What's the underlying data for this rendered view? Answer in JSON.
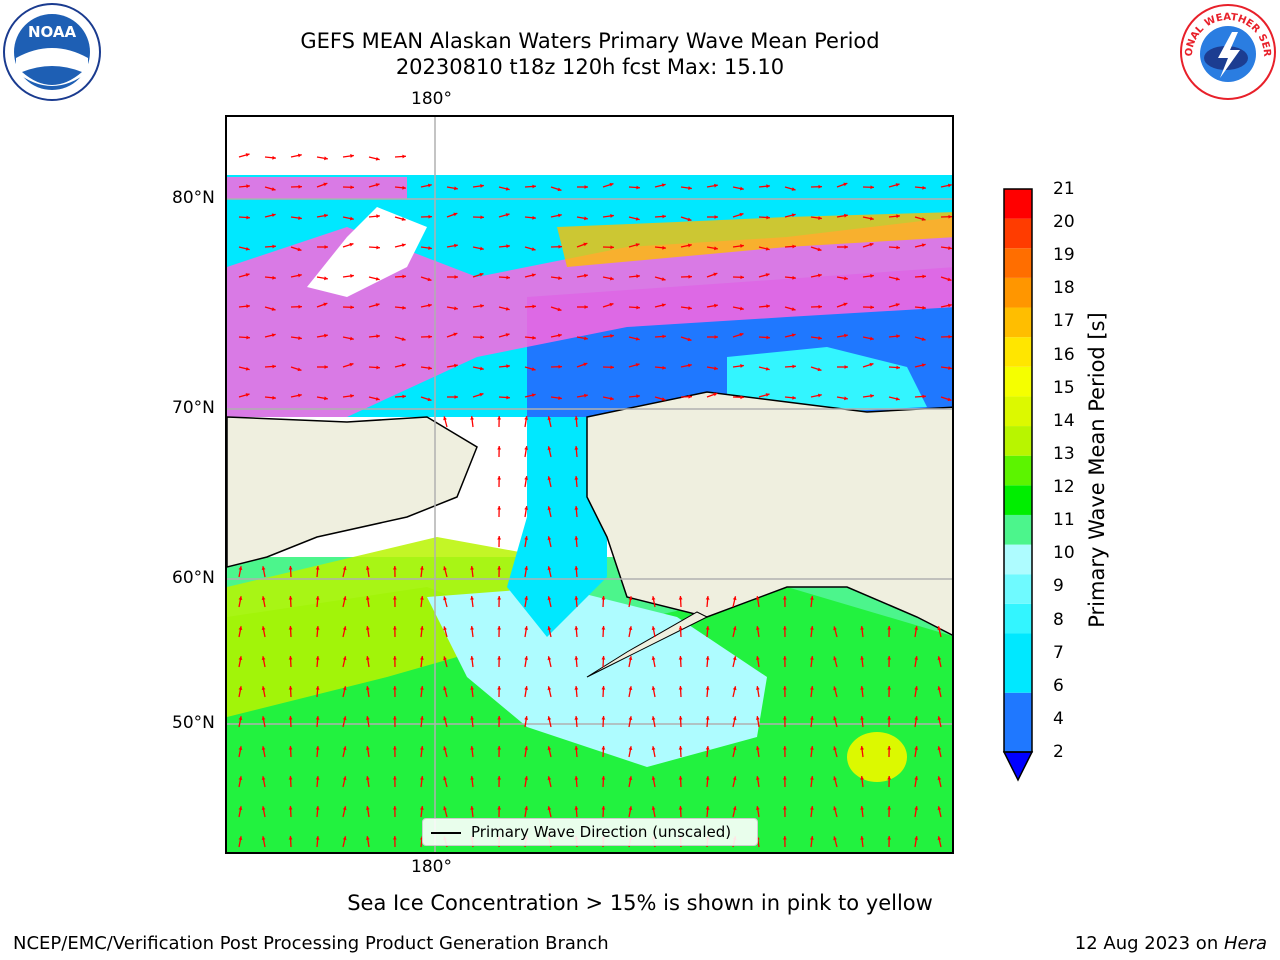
{
  "title": {
    "line1": "GEFS MEAN Alaskan Waters Primary Wave Mean Period",
    "line2": "20230810 t18z 120h fcst   Max: 15.10"
  },
  "logos": {
    "noaa_text": "NOAA",
    "nws_text": "NATIONAL WEATHER SERVICE"
  },
  "map": {
    "lon_label_top": "180°",
    "lon_label_bottom": "180°",
    "lat_labels": [
      "80°N",
      "70°N",
      "60°N",
      "50°N"
    ],
    "legend_label": "Primary Wave Direction (unscaled)",
    "colors": {
      "land": "#efefdf",
      "grid": "#b0b0b0",
      "arrow": "#ff0000"
    }
  },
  "colorbar": {
    "title": "Primary Wave Mean Period [s]",
    "tick_labels": [
      "2",
      "4",
      "6",
      "7",
      "8",
      "9",
      "10",
      "11",
      "12",
      "13",
      "14",
      "15",
      "16",
      "17",
      "18",
      "19",
      "20",
      "21"
    ],
    "bins": [
      {
        "from": 2,
        "to": 4,
        "color": "#1f78ff"
      },
      {
        "from": 4,
        "to": 6,
        "color": "#00e8ff"
      },
      {
        "from": 6,
        "to": 7,
        "color": "#33f5ff"
      },
      {
        "from": 7,
        "to": 8,
        "color": "#6ffaff"
      },
      {
        "from": 8,
        "to": 9,
        "color": "#aefcff"
      },
      {
        "from": 9,
        "to": 10,
        "color": "#4cf58c"
      },
      {
        "from": 10,
        "to": 11,
        "color": "#00ee00"
      },
      {
        "from": 11,
        "to": 12,
        "color": "#5cf400"
      },
      {
        "from": 12,
        "to": 13,
        "color": "#b8f500"
      },
      {
        "from": 13,
        "to": 14,
        "color": "#dcf900"
      },
      {
        "from": 14,
        "to": 15,
        "color": "#f5ff00"
      },
      {
        "from": 15,
        "to": 16,
        "color": "#ffe600"
      },
      {
        "from": 16,
        "to": 17,
        "color": "#ffbe00"
      },
      {
        "from": 17,
        "to": 18,
        "color": "#ff9600"
      },
      {
        "from": 18,
        "to": 19,
        "color": "#ff6e00"
      },
      {
        "from": 19,
        "to": 20,
        "color": "#ff3c00"
      },
      {
        "from": 20,
        "to": 21,
        "color": "#ff0000"
      }
    ],
    "under_color": "#0000ff"
  },
  "footer": {
    "note": "Sea Ice Concentration > 15% is shown in pink to yellow",
    "left": "NCEP/EMC/Verification Post Processing Product Generation Branch",
    "right_prefix": "12 Aug 2023 on ",
    "right_machine": "Hera"
  }
}
